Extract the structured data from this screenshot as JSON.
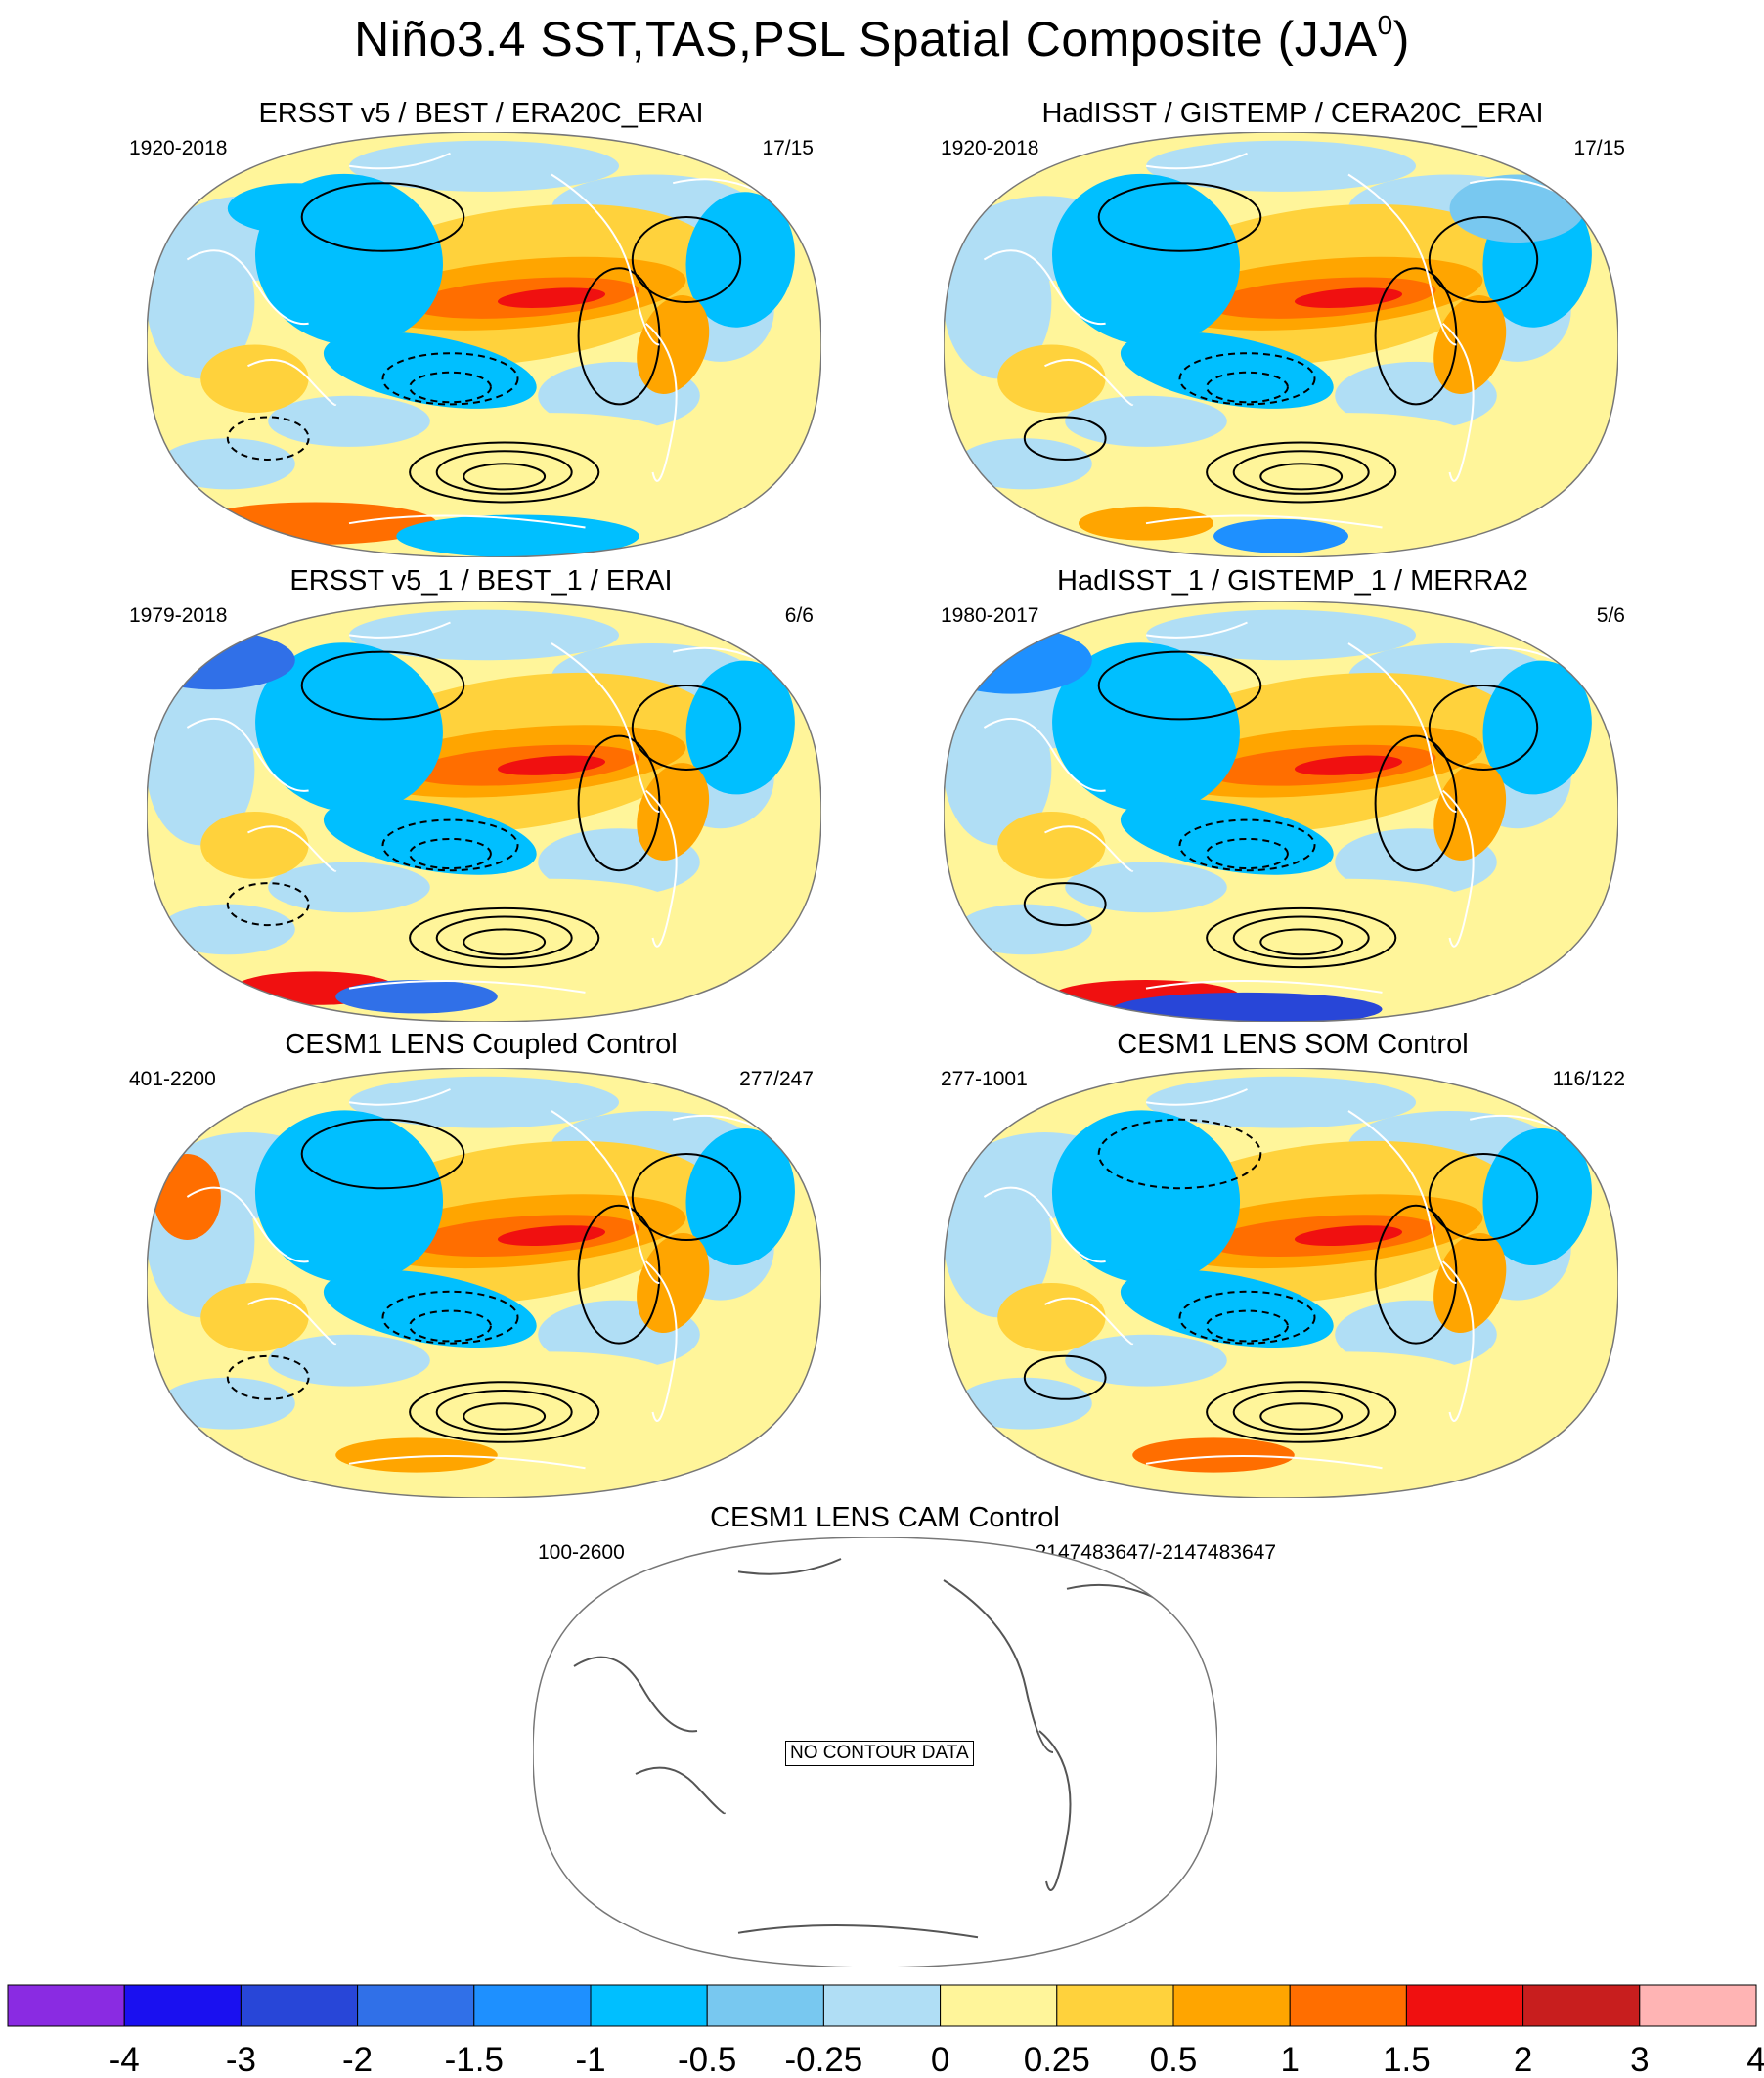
{
  "figure": {
    "title_main": "Niño3.4 SST,TAS,PSL Spatial Composite (JJA",
    "title_sup": "0",
    "title_end": ")"
  },
  "panels": [
    {
      "title": "ERSST v5 / BEST / ERA20C_ERAI",
      "years": "1920-2018",
      "count": "17/15",
      "variant": 0
    },
    {
      "title": "HadISST / GISTEMP / CERA20C_ERAI",
      "years": "1920-2018",
      "count": "17/15",
      "variant": 1
    },
    {
      "title": "ERSST v5_1 / BEST_1 / ERAI",
      "years": "1979-2018",
      "count": "6/6",
      "variant": 2
    },
    {
      "title": "HadISST_1 / GISTEMP_1 / MERRA2",
      "years": "1980-2017",
      "count": "5/6",
      "variant": 3
    },
    {
      "title": "CESM1 LENS Coupled Control",
      "years": "401-2200",
      "count": "277/247",
      "variant": 4
    },
    {
      "title": "CESM1 LENS SOM Control",
      "years": "277-1001",
      "count": "116/122",
      "variant": 5
    },
    {
      "title": "CESM1 LENS CAM Control",
      "years": "100-2600",
      "count": "-2147483647/-2147483647",
      "variant": 6,
      "no_data_text": "NO CONTOUR DATA"
    }
  ],
  "colorbar": {
    "labels": [
      "-4",
      "-3",
      "-2",
      "-1.5",
      "-1",
      "-0.5",
      "-0.25",
      "0",
      "0.25",
      "0.5",
      "1",
      "1.5",
      "2",
      "3",
      "4"
    ],
    "colors": [
      "#8a2be2",
      "#1a10f0",
      "#2846d8",
      "#3070e8",
      "#1e90ff",
      "#00bfff",
      "#78c8f0",
      "#b0def5",
      "#fff59a",
      "#ffd23c",
      "#ffa500",
      "#ff6e00",
      "#f01010",
      "#c81e1e",
      "#ffb4b4"
    ]
  }
}
